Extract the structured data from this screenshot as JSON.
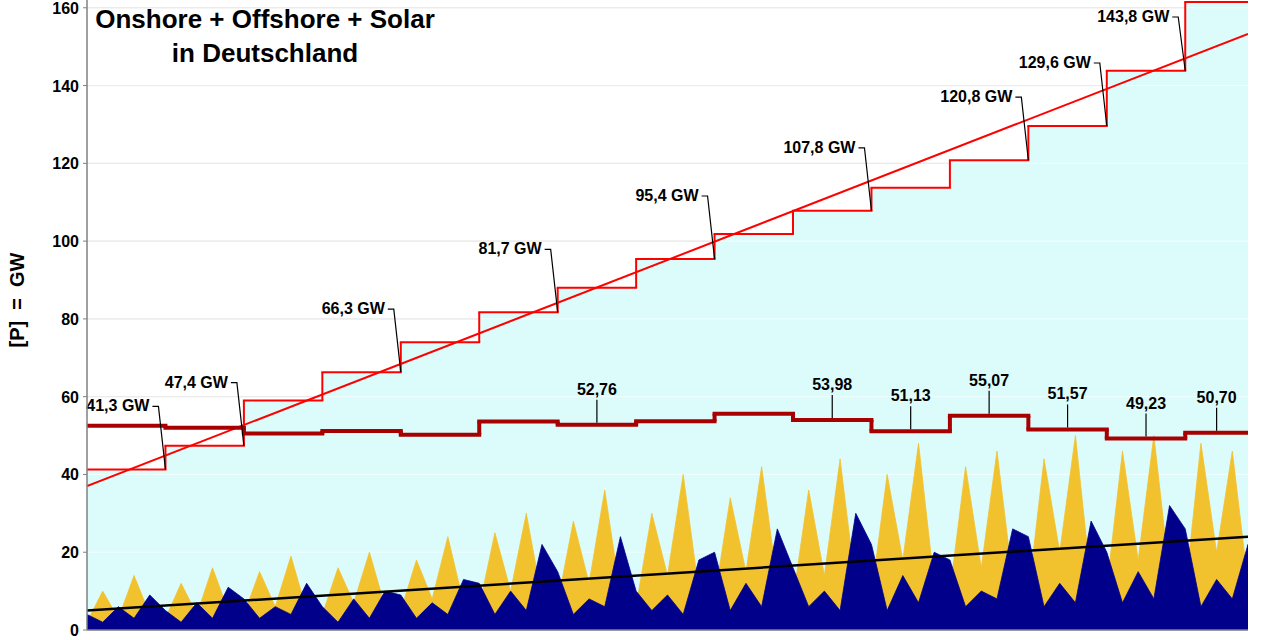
{
  "chart_data": {
    "type": "line",
    "title": "Onshore + Offshore + Solar",
    "subtitle": "in Deutschland",
    "y_label": "[P]  =  GW",
    "xlim": [
      0,
      14.8
    ],
    "ylim": [
      0,
      162
    ],
    "yticks": [
      0,
      20,
      40,
      60,
      80,
      100,
      120,
      140,
      160
    ],
    "grid": true,
    "tick_labels": "y",
    "series": [
      {
        "type": "area",
        "color": "#f2c12e",
        "x": [
          0,
          0.2,
          0.4,
          0.6,
          0.8,
          1,
          1.2,
          1.4,
          1.6,
          1.8,
          2,
          2.2,
          2.4,
          2.6,
          2.8,
          3,
          3.2,
          3.4,
          3.6,
          3.8,
          4,
          4.2,
          4.4,
          4.6,
          4.8,
          5,
          5.2,
          5.4,
          5.6,
          5.8,
          6,
          6.2,
          6.4,
          6.6,
          6.8,
          7,
          7.2,
          7.4,
          7.6,
          7.8,
          8,
          8.2,
          8.4,
          8.6,
          8.8,
          9,
          9.2,
          9.4,
          9.6,
          9.8,
          10,
          10.2,
          10.4,
          10.6,
          10.8,
          11,
          11.2,
          11.4,
          11.6,
          11.8,
          12,
          12.2,
          12.4,
          12.6,
          12.8,
          13,
          13.2,
          13.4,
          13.6,
          13.8,
          14,
          14.2,
          14.4,
          14.6,
          14.8
        ],
        "values": [
          2,
          10,
          3,
          14,
          4,
          3,
          12,
          4,
          16,
          5,
          4,
          15,
          6,
          19,
          5,
          4,
          16,
          7,
          20,
          6,
          5,
          18,
          8,
          24,
          7,
          6,
          25,
          10,
          30,
          8,
          7,
          28,
          12,
          36,
          9,
          6,
          30,
          14,
          40,
          10,
          8,
          34,
          15,
          42,
          12,
          8,
          36,
          14,
          44,
          11,
          9,
          40,
          18,
          48,
          12,
          10,
          42,
          16,
          46,
          13,
          9,
          44,
          20,
          50,
          12,
          11,
          46,
          18,
          50,
          14,
          10,
          48,
          20,
          46,
          12
        ]
      },
      {
        "type": "area",
        "color": "#00008b",
        "x": [
          0,
          0.2,
          0.4,
          0.6,
          0.8,
          1,
          1.2,
          1.4,
          1.6,
          1.8,
          2,
          2.2,
          2.4,
          2.6,
          2.8,
          3,
          3.2,
          3.4,
          3.6,
          3.8,
          4,
          4.2,
          4.4,
          4.6,
          4.8,
          5,
          5.2,
          5.4,
          5.6,
          5.8,
          6,
          6.2,
          6.4,
          6.6,
          6.8,
          7,
          7.2,
          7.4,
          7.6,
          7.8,
          8,
          8.2,
          8.4,
          8.6,
          8.8,
          9,
          9.2,
          9.4,
          9.6,
          9.8,
          10,
          10.2,
          10.4,
          10.6,
          10.8,
          11,
          11.2,
          11.4,
          11.6,
          11.8,
          12,
          12.2,
          12.4,
          12.6,
          12.8,
          13,
          13.2,
          13.4,
          13.6,
          13.8,
          14,
          14.2,
          14.4,
          14.6,
          14.8
        ],
        "values": [
          4,
          2,
          6,
          3,
          9,
          5,
          2,
          7,
          3,
          11,
          8,
          3,
          6,
          4,
          12,
          6,
          2,
          8,
          3,
          10,
          9,
          3,
          7,
          4,
          13,
          12,
          4,
          10,
          5,
          22,
          15,
          4,
          8,
          6,
          24,
          10,
          5,
          9,
          4,
          18,
          20,
          5,
          12,
          6,
          26,
          16,
          6,
          10,
          5,
          30,
          22,
          5,
          14,
          7,
          20,
          18,
          6,
          10,
          8,
          26,
          24,
          6,
          12,
          7,
          28,
          20,
          7,
          15,
          8,
          32,
          26,
          6,
          13,
          8,
          22
        ]
      },
      {
        "type": "line",
        "color": "#000000",
        "x": [
          0,
          14.8
        ],
        "values": [
          5,
          24
        ]
      },
      {
        "type": "step_area",
        "color": "#ff0000",
        "data_labels": true,
        "x": [
          0,
          1,
          2,
          3,
          4,
          5,
          6,
          7,
          8,
          9,
          10,
          11,
          12,
          13,
          14
        ],
        "values": [
          41.3,
          47.4,
          59,
          66.3,
          74,
          81.7,
          88,
          95.4,
          101.8,
          107.8,
          113.7,
          120.8,
          129.6,
          143.8,
          161.5
        ],
        "value_labels": [
          "41,3 GW",
          "47,4 GW",
          null,
          "66,3 GW",
          null,
          "81,7 GW",
          null,
          "95,4 GW",
          null,
          "107,8 GW",
          null,
          "120,8 GW",
          "129,6 GW",
          "143,8 GW",
          null
        ]
      },
      {
        "type": "line",
        "color": "#ff0000",
        "x": [
          0,
          14.8
        ],
        "values": [
          37,
          153.3
        ]
      },
      {
        "type": "step",
        "color": "#a80000",
        "data_labels": true,
        "x": [
          0,
          1,
          2,
          3,
          4,
          5,
          6,
          7,
          8,
          9,
          10,
          11,
          12,
          13,
          14
        ],
        "values": [
          52.5,
          52,
          50.5,
          51.2,
          50.2,
          53.6,
          52.76,
          53.7,
          55.6,
          53.98,
          51.13,
          55.07,
          51.57,
          49.23,
          50.7
        ],
        "value_labels": [
          null,
          null,
          null,
          null,
          null,
          null,
          "52,76",
          null,
          null,
          "53,98",
          "51,13",
          "55,07",
          "51,57",
          "49,23",
          "50,70"
        ]
      }
    ]
  }
}
